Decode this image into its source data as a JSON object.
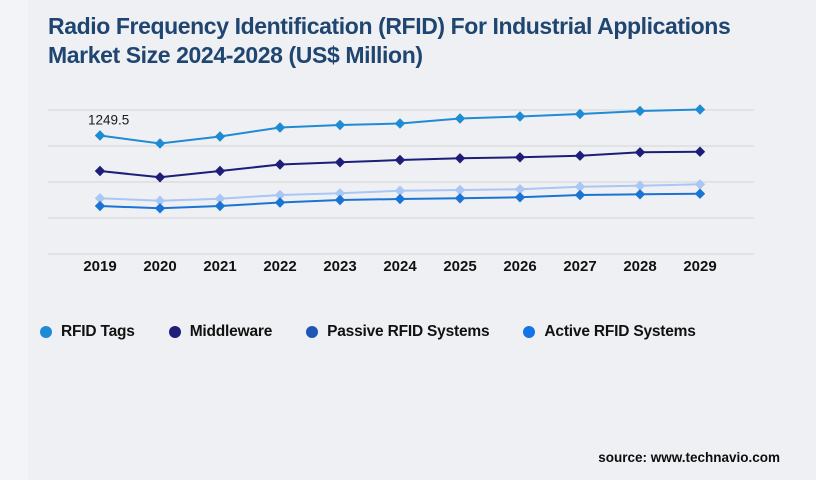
{
  "title": "Radio Frequency Identification (RFID) For Industrial Applications Market Size 2024-2028 (US$ Million)",
  "source": "source: www.technavio.com",
  "colors": {
    "background": "#eff0f3",
    "title_text": "#1f4571",
    "gridline": "#d8d9dc",
    "axis_label": "#111111",
    "annotation_text": "#1a1a1a"
  },
  "chart_data": {
    "type": "line",
    "title": "Radio Frequency Identification (RFID) For Industrial Applications Market Size 2024-2028 (US$ Million)",
    "x": [
      2019,
      2020,
      2021,
      2022,
      2023,
      2024,
      2025,
      2026,
      2027,
      2028,
      2029
    ],
    "xlabel": "",
    "ylabel": "US$ Million",
    "ylim": [
      0,
      1624
    ],
    "grid": true,
    "legend_position": "bottom",
    "annotation": {
      "text": "1249.5",
      "series": "RFID Tags",
      "x": 2019,
      "value": 1249.5
    },
    "series": [
      {
        "name": "RFID Tags",
        "color": "#1e8bd4",
        "legend_color": "#1e8bd4",
        "values": [
          1249.5,
          1165.1,
          1238.9,
          1333.8,
          1360.2,
          1376.0,
          1428.7,
          1449.8,
          1476.2,
          1507.8,
          1523.6
        ]
      },
      {
        "name": "Middleware",
        "color": "#1e1d7a",
        "legend_color": "#1e1d7a",
        "values": [
          875.2,
          808.7,
          875.2,
          943.7,
          966.9,
          991.1,
          1009.1,
          1019.6,
          1036.5,
          1072.3,
          1078.7
        ]
      },
      {
        "name": "Passive RFID Systems",
        "color": "#a9c6f4",
        "legend_color": "#1d56b4",
        "values": [
          587.3,
          562.0,
          583.1,
          622.1,
          640.0,
          667.4,
          674.8,
          682.2,
          709.6,
          720.2,
          734.9
        ]
      },
      {
        "name": "Active RFID Systems",
        "color": "#1a74d4",
        "legend_color": "#1473e6",
        "values": [
          506.1,
          481.9,
          506.1,
          543.0,
          569.4,
          579.9,
          587.3,
          597.8,
          622.1,
          629.5,
          635.8
        ]
      }
    ]
  }
}
